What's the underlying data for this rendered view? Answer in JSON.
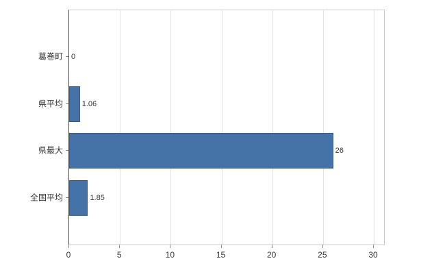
{
  "chart_data": {
    "type": "bar",
    "orientation": "horizontal",
    "title": "",
    "categories": [
      "葛巻町",
      "県平均",
      "県最大",
      "全国平均"
    ],
    "values": [
      0,
      1.06,
      26,
      1.85
    ],
    "value_labels": [
      "0",
      "1.06",
      "26",
      "1.85"
    ],
    "xlim": [
      0,
      31
    ],
    "xticks": [
      0,
      5,
      10,
      15,
      20,
      25,
      30
    ],
    "xtick_labels": [
      "0",
      "5",
      "10",
      "15",
      "20",
      "25",
      "30"
    ],
    "grid": true,
    "legend": "none",
    "bar_color": "#4572a7",
    "bar_border_color": "#38598a",
    "grid_color": "#e2e2e2",
    "axis_color": "#4d4d4d",
    "text_color": "#333333"
  }
}
